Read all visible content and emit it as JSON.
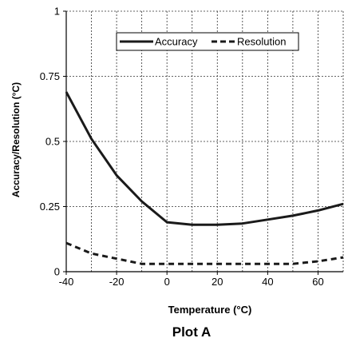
{
  "chart_data": {
    "type": "line",
    "title": "Plot A",
    "xlabel": "Temperature (°C)",
    "ylabel": "Accuracy/Resolution (°C)",
    "xlim": [
      -40,
      70
    ],
    "ylim": [
      0,
      1
    ],
    "x_ticks": [
      -40,
      -20,
      0,
      20,
      40,
      60
    ],
    "x_tick_labels": [
      "-40",
      "-20",
      "0",
      "20",
      "40",
      "60"
    ],
    "y_ticks": [
      0,
      0.25,
      0.5,
      0.75,
      1
    ],
    "y_tick_labels": [
      "0",
      "0.25",
      "0.5",
      "0.75",
      "1"
    ],
    "grid": true,
    "legend_position": "top-right",
    "series": [
      {
        "name": "Accuracy",
        "style": "solid",
        "color": "#1a1a1a",
        "x": [
          -40,
          -30,
          -20,
          -10,
          0,
          10,
          20,
          30,
          40,
          50,
          60,
          70
        ],
        "y": [
          0.69,
          0.51,
          0.37,
          0.27,
          0.19,
          0.18,
          0.18,
          0.185,
          0.2,
          0.215,
          0.235,
          0.26
        ]
      },
      {
        "name": "Resolution",
        "style": "dashed",
        "color": "#1a1a1a",
        "x": [
          -40,
          -30,
          -20,
          -10,
          0,
          10,
          20,
          30,
          40,
          50,
          60,
          70
        ],
        "y": [
          0.11,
          0.07,
          0.05,
          0.03,
          0.03,
          0.03,
          0.03,
          0.03,
          0.03,
          0.03,
          0.04,
          0.055
        ]
      }
    ]
  }
}
